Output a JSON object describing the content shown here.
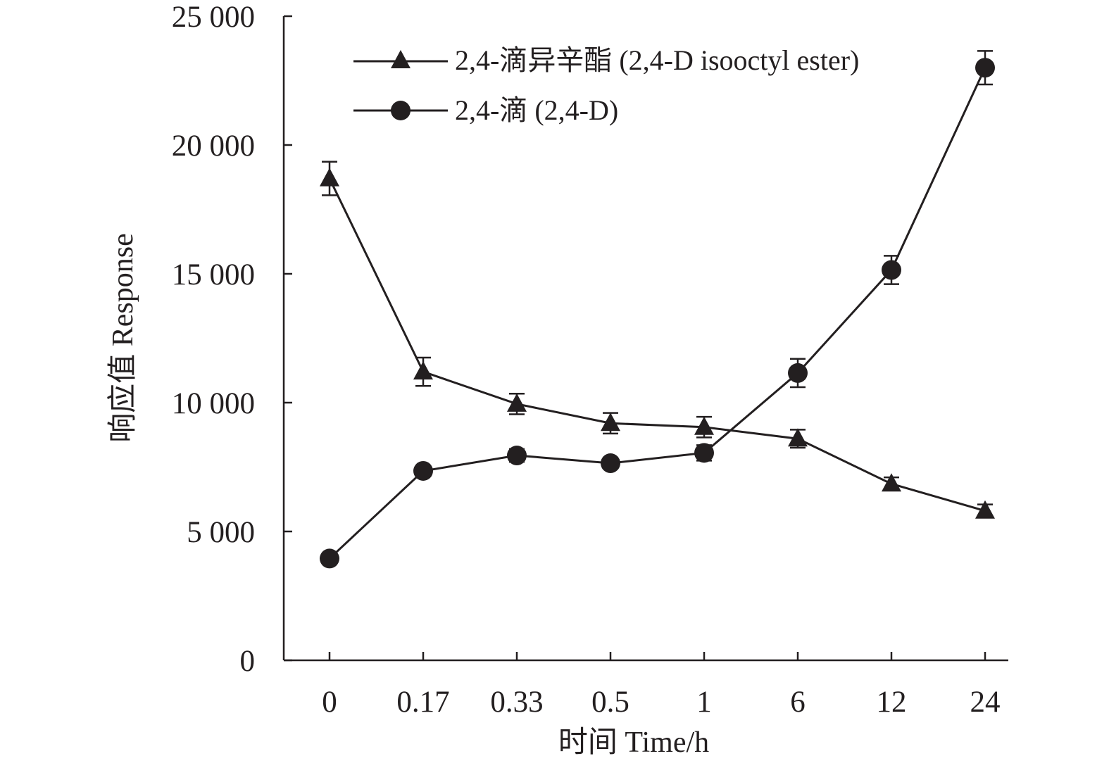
{
  "chart_data": {
    "type": "line",
    "categories": [
      "0",
      "0.17",
      "0.33",
      "0.5",
      "1",
      "6",
      "12",
      "24"
    ],
    "xlabel": "时间 Time/h",
    "ylabel": "响应值 Response",
    "ylim": [
      0,
      25000
    ],
    "yticks": [
      0,
      5000,
      10000,
      15000,
      20000,
      25000
    ],
    "ytick_labels": [
      "0",
      "5 000",
      "10 000",
      "15 000",
      "20 000",
      "25 000"
    ],
    "grid": false,
    "legend_position": "top-right",
    "series": [
      {
        "name": "2,4-滴异辛酯 (2,4-D isooctyl ester)",
        "marker": "triangle",
        "values": [
          18700,
          11200,
          9950,
          9200,
          9050,
          8600,
          6850,
          5800
        ],
        "errors": [
          650,
          550,
          400,
          400,
          400,
          350,
          250,
          250
        ]
      },
      {
        "name": "2,4-滴 (2,4-D)",
        "marker": "circle",
        "values": [
          3950,
          7350,
          7950,
          7650,
          8050,
          11150,
          15150,
          23000
        ],
        "errors": [
          150,
          200,
          250,
          200,
          300,
          550,
          550,
          650
        ]
      }
    ],
    "colors": {
      "line": "#231f20",
      "marker": "#231f20"
    }
  }
}
